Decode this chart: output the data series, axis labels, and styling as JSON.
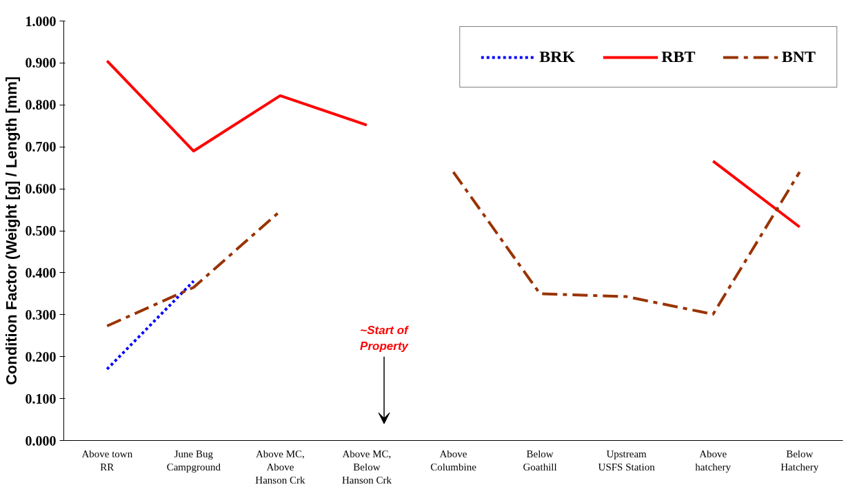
{
  "chart_data": {
    "type": "line",
    "ylabel": "Condition Factor (Weight [g] / Length [mm]",
    "categories": [
      "Above town\nRR",
      "June Bug\nCampground",
      "Above MC,\nAbove\nHanson Crk",
      "Above MC,\nBelow\nHanson Crk",
      "Above\nColumbine",
      "Below\nGoathill",
      "Upstream\nUSFS Station",
      "Above\nhatchery",
      "Below\nHatchery"
    ],
    "series": [
      {
        "name": "BRK",
        "color": "#0000ff",
        "line_style": "dotted",
        "values": [
          0.17,
          0.38,
          null,
          null,
          null,
          null,
          null,
          null,
          null
        ]
      },
      {
        "name": "RBT",
        "color": "#ff0000",
        "line_style": "solid",
        "values": [
          0.905,
          0.69,
          0.822,
          0.752,
          null,
          null,
          null,
          0.666,
          0.509
        ]
      },
      {
        "name": "BNT",
        "color": "#993300",
        "line_style": "dashdot",
        "values": [
          0.273,
          0.365,
          0.547,
          null,
          0.64,
          0.35,
          0.343,
          0.301,
          0.64
        ]
      }
    ],
    "ylim": [
      0,
      1
    ],
    "yticks": [
      {
        "value": 0,
        "label": "0.000"
      },
      {
        "value": 0.1,
        "label": "0.100"
      },
      {
        "value": 0.2,
        "label": "0.200"
      },
      {
        "value": 0.3,
        "label": "0.300"
      },
      {
        "value": 0.4,
        "label": "0.400"
      },
      {
        "value": 0.5,
        "label": "0.500"
      },
      {
        "value": 0.6,
        "label": "0.600"
      },
      {
        "value": 0.7,
        "label": "0.700"
      },
      {
        "value": 0.8,
        "label": "0.800"
      },
      {
        "value": 0.9,
        "label": "0.900"
      },
      {
        "value": 1,
        "label": "1.000"
      }
    ],
    "annotations": [
      "~Start of\nProperty"
    ],
    "grid": false,
    "legend": "top right"
  }
}
